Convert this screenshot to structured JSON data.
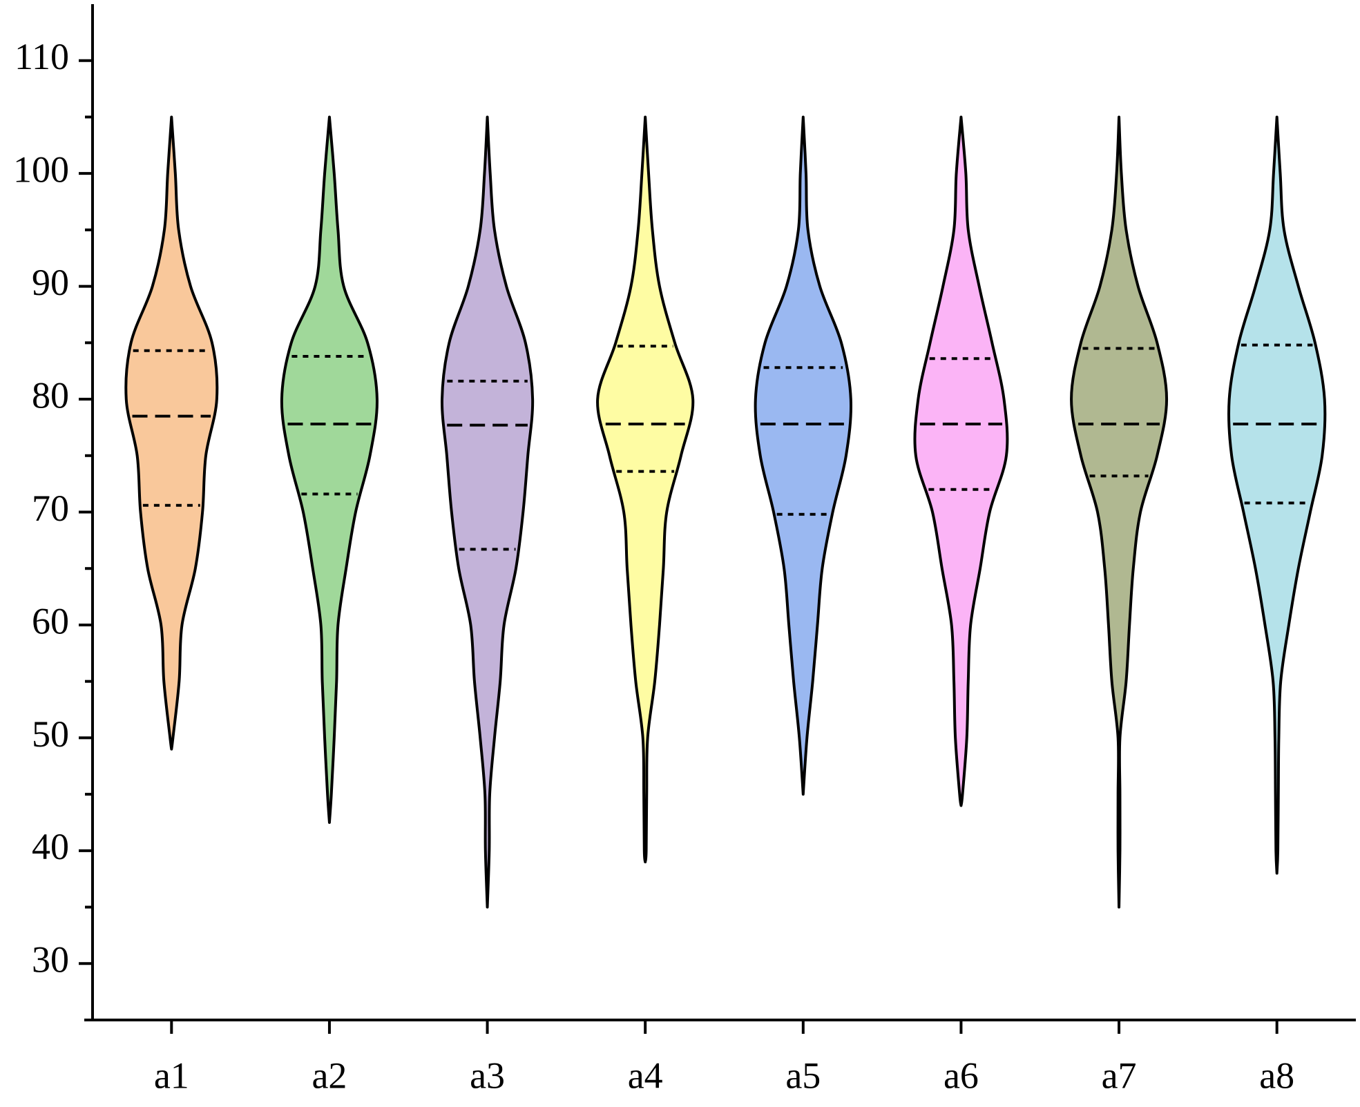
{
  "chart_data": {
    "type": "violin",
    "categories": [
      "a1",
      "a2",
      "a3",
      "a4",
      "a5",
      "a6",
      "a7",
      "a8"
    ],
    "ylim": [
      25,
      115
    ],
    "yticks": [
      30,
      40,
      50,
      60,
      70,
      80,
      90,
      100,
      110
    ],
    "yticks_minor": [
      35,
      45,
      55,
      65,
      75,
      85,
      95,
      105
    ],
    "density_y": [
      105,
      100,
      95,
      90,
      85,
      80,
      75,
      70,
      65,
      60,
      55,
      50,
      45,
      40,
      35
    ],
    "series": [
      {
        "name": "a1",
        "color": "#f9c89b",
        "min": 49,
        "q1": 70.6,
        "median": 78.5,
        "q3": 84.3,
        "max": 105,
        "density": [
          0,
          0.08,
          0.15,
          0.4,
          0.85,
          0.95,
          0.72,
          0.65,
          0.5,
          0.22,
          0.16,
          0.03,
          null,
          null,
          null
        ]
      },
      {
        "name": "a2",
        "color": "#a0d89a",
        "min": 42.5,
        "q1": 71.6,
        "median": 77.8,
        "q3": 83.8,
        "max": 105,
        "density": [
          0,
          0.1,
          0.18,
          0.3,
          0.8,
          1.0,
          0.85,
          0.55,
          0.35,
          0.18,
          0.15,
          0.1,
          0.04,
          null,
          null
        ]
      },
      {
        "name": "a3",
        "color": "#c3b3d9",
        "min": 35,
        "q1": 66.7,
        "median": 77.7,
        "q3": 81.6,
        "max": 105,
        "density": [
          0,
          0.06,
          0.15,
          0.4,
          0.8,
          0.95,
          0.85,
          0.75,
          0.6,
          0.35,
          0.27,
          0.15,
          0.05,
          0.04,
          null
        ]
      },
      {
        "name": "a4",
        "color": "#fefca3",
        "min": 39,
        "q1": 73.6,
        "median": 77.8,
        "q3": 84.7,
        "max": 105,
        "density": [
          0,
          0.07,
          0.15,
          0.3,
          0.62,
          1.0,
          0.75,
          0.45,
          0.38,
          0.3,
          0.2,
          0.05,
          0.03,
          0.02,
          null
        ]
      },
      {
        "name": "a5",
        "color": "#9ab8f1",
        "min": 45,
        "q1": 69.8,
        "median": 77.8,
        "q3": 82.8,
        "max": 105,
        "density": [
          0,
          0.06,
          0.1,
          0.35,
          0.8,
          1.0,
          0.9,
          0.62,
          0.4,
          0.3,
          0.2,
          0.08,
          null,
          null,
          null
        ]
      },
      {
        "name": "a6",
        "color": "#fbb4f6",
        "min": 44,
        "q1": 72,
        "median": 77.8,
        "q3": 83.6,
        "max": 105,
        "density": [
          0,
          0.1,
          0.15,
          0.38,
          0.65,
          0.9,
          0.95,
          0.6,
          0.4,
          0.2,
          0.15,
          0.12,
          0.03,
          null,
          null
        ]
      },
      {
        "name": "a7",
        "color": "#b0b891",
        "min": 35,
        "q1": 73.2,
        "median": 77.8,
        "q3": 84.5,
        "max": 105,
        "density": [
          0,
          0.05,
          0.15,
          0.4,
          0.8,
          1.0,
          0.8,
          0.45,
          0.3,
          0.22,
          0.15,
          0.02,
          0.02,
          0.02,
          null
        ]
      },
      {
        "name": "a8",
        "color": "#b5e2ea",
        "min": 38,
        "q1": 70.8,
        "median": 77.8,
        "q3": 84.8,
        "max": 105,
        "density": [
          0,
          0.07,
          0.15,
          0.45,
          0.8,
          1.0,
          0.95,
          0.7,
          0.45,
          0.25,
          0.08,
          0.04,
          0.03,
          0.02,
          null
        ]
      }
    ]
  }
}
